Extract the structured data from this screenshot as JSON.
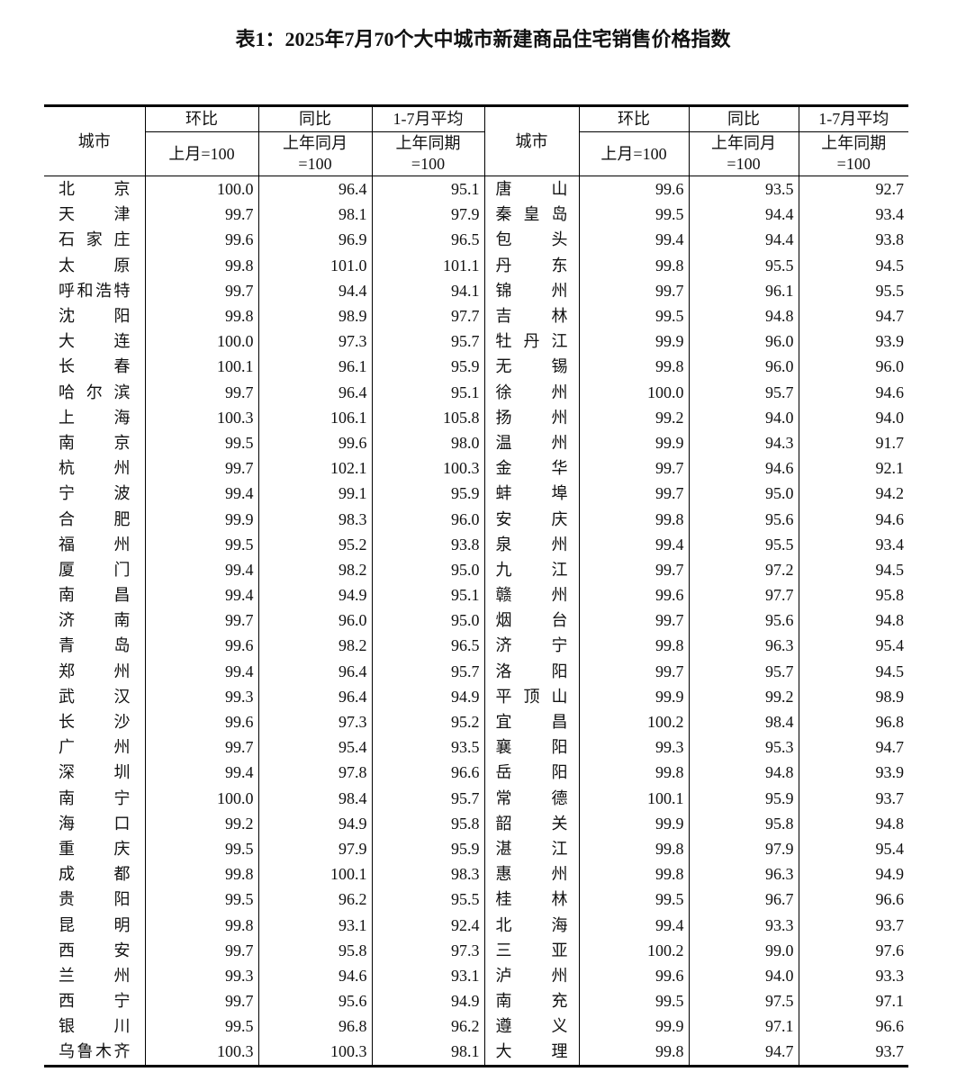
{
  "title": "表1：2025年7月70个大中城市新建商品住宅销售价格指数",
  "header": {
    "city": "城市",
    "mom": "环比",
    "mom_base": "上月=100",
    "yoy": "同比",
    "yoy_base_1": "上年同月",
    "yoy_base_2": "=100",
    "avg": "1-7月平均",
    "avg_base_1": "上年同期",
    "avg_base_2": "=100"
  },
  "rows": [
    {
      "left": [
        "北京",
        "100.0",
        "96.4",
        "95.1"
      ],
      "right": [
        "唐山",
        "99.6",
        "93.5",
        "92.7"
      ]
    },
    {
      "left": [
        "天津",
        "99.7",
        "98.1",
        "97.9"
      ],
      "right": [
        "秦皇岛",
        "99.5",
        "94.4",
        "93.4"
      ]
    },
    {
      "left": [
        "石家庄",
        "99.6",
        "96.9",
        "96.5"
      ],
      "right": [
        "包头",
        "99.4",
        "94.4",
        "93.8"
      ]
    },
    {
      "left": [
        "太原",
        "99.8",
        "101.0",
        "101.1"
      ],
      "right": [
        "丹东",
        "99.8",
        "95.5",
        "94.5"
      ]
    },
    {
      "left": [
        "呼和浩特",
        "99.7",
        "94.4",
        "94.1"
      ],
      "right": [
        "锦州",
        "99.7",
        "96.1",
        "95.5"
      ]
    },
    {
      "left": [
        "沈阳",
        "99.8",
        "98.9",
        "97.7"
      ],
      "right": [
        "吉林",
        "99.5",
        "94.8",
        "94.7"
      ]
    },
    {
      "left": [
        "大连",
        "100.0",
        "97.3",
        "95.7"
      ],
      "right": [
        "牡丹江",
        "99.9",
        "96.0",
        "93.9"
      ]
    },
    {
      "left": [
        "长春",
        "100.1",
        "96.1",
        "95.9"
      ],
      "right": [
        "无锡",
        "99.8",
        "96.0",
        "96.0"
      ]
    },
    {
      "left": [
        "哈尔滨",
        "99.7",
        "96.4",
        "95.1"
      ],
      "right": [
        "徐州",
        "100.0",
        "95.7",
        "94.6"
      ]
    },
    {
      "left": [
        "上海",
        "100.3",
        "106.1",
        "105.8"
      ],
      "right": [
        "扬州",
        "99.2",
        "94.0",
        "94.0"
      ]
    },
    {
      "left": [
        "南京",
        "99.5",
        "99.6",
        "98.0"
      ],
      "right": [
        "温州",
        "99.9",
        "94.3",
        "91.7"
      ]
    },
    {
      "left": [
        "杭州",
        "99.7",
        "102.1",
        "100.3"
      ],
      "right": [
        "金华",
        "99.7",
        "94.6",
        "92.1"
      ]
    },
    {
      "left": [
        "宁波",
        "99.4",
        "99.1",
        "95.9"
      ],
      "right": [
        "蚌埠",
        "99.7",
        "95.0",
        "94.2"
      ]
    },
    {
      "left": [
        "合肥",
        "99.9",
        "98.3",
        "96.0"
      ],
      "right": [
        "安庆",
        "99.8",
        "95.6",
        "94.6"
      ]
    },
    {
      "left": [
        "福州",
        "99.5",
        "95.2",
        "93.8"
      ],
      "right": [
        "泉州",
        "99.4",
        "95.5",
        "93.4"
      ]
    },
    {
      "left": [
        "厦门",
        "99.4",
        "98.2",
        "95.0"
      ],
      "right": [
        "九江",
        "99.7",
        "97.2",
        "94.5"
      ]
    },
    {
      "left": [
        "南昌",
        "99.4",
        "94.9",
        "95.1"
      ],
      "right": [
        "赣州",
        "99.6",
        "97.7",
        "95.8"
      ]
    },
    {
      "left": [
        "济南",
        "99.7",
        "96.0",
        "95.0"
      ],
      "right": [
        "烟台",
        "99.7",
        "95.6",
        "94.8"
      ]
    },
    {
      "left": [
        "青岛",
        "99.6",
        "98.2",
        "96.5"
      ],
      "right": [
        "济宁",
        "99.8",
        "96.3",
        "95.4"
      ]
    },
    {
      "left": [
        "郑州",
        "99.4",
        "96.4",
        "95.7"
      ],
      "right": [
        "洛阳",
        "99.7",
        "95.7",
        "94.5"
      ]
    },
    {
      "left": [
        "武汉",
        "99.3",
        "96.4",
        "94.9"
      ],
      "right": [
        "平顶山",
        "99.9",
        "99.2",
        "98.9"
      ]
    },
    {
      "left": [
        "长沙",
        "99.6",
        "97.3",
        "95.2"
      ],
      "right": [
        "宜昌",
        "100.2",
        "98.4",
        "96.8"
      ]
    },
    {
      "left": [
        "广州",
        "99.7",
        "95.4",
        "93.5"
      ],
      "right": [
        "襄阳",
        "99.3",
        "95.3",
        "94.7"
      ]
    },
    {
      "left": [
        "深圳",
        "99.4",
        "97.8",
        "96.6"
      ],
      "right": [
        "岳阳",
        "99.8",
        "94.8",
        "93.9"
      ]
    },
    {
      "left": [
        "南宁",
        "100.0",
        "98.4",
        "95.7"
      ],
      "right": [
        "常德",
        "100.1",
        "95.9",
        "93.7"
      ]
    },
    {
      "left": [
        "海口",
        "99.2",
        "94.9",
        "95.8"
      ],
      "right": [
        "韶关",
        "99.9",
        "95.8",
        "94.8"
      ]
    },
    {
      "left": [
        "重庆",
        "99.5",
        "97.9",
        "95.9"
      ],
      "right": [
        "湛江",
        "99.8",
        "97.9",
        "95.4"
      ]
    },
    {
      "left": [
        "成都",
        "99.8",
        "100.1",
        "98.3"
      ],
      "right": [
        "惠州",
        "99.8",
        "96.3",
        "94.9"
      ]
    },
    {
      "left": [
        "贵阳",
        "99.5",
        "96.2",
        "95.5"
      ],
      "right": [
        "桂林",
        "99.5",
        "96.7",
        "96.6"
      ]
    },
    {
      "left": [
        "昆明",
        "99.8",
        "93.1",
        "92.4"
      ],
      "right": [
        "北海",
        "99.4",
        "93.3",
        "93.7"
      ]
    },
    {
      "left": [
        "西安",
        "99.7",
        "95.8",
        "97.3"
      ],
      "right": [
        "三亚",
        "100.2",
        "99.0",
        "97.6"
      ]
    },
    {
      "left": [
        "兰州",
        "99.3",
        "94.6",
        "93.1"
      ],
      "right": [
        "泸州",
        "99.6",
        "94.0",
        "93.3"
      ]
    },
    {
      "left": [
        "西宁",
        "99.7",
        "95.6",
        "94.9"
      ],
      "right": [
        "南充",
        "99.5",
        "97.5",
        "97.1"
      ]
    },
    {
      "left": [
        "银川",
        "99.5",
        "96.8",
        "96.2"
      ],
      "right": [
        "遵义",
        "99.9",
        "97.1",
        "96.6"
      ]
    },
    {
      "left": [
        "乌鲁木齐",
        "100.3",
        "100.3",
        "98.1"
      ],
      "right": [
        "大理",
        "99.8",
        "94.7",
        "93.7"
      ]
    }
  ]
}
